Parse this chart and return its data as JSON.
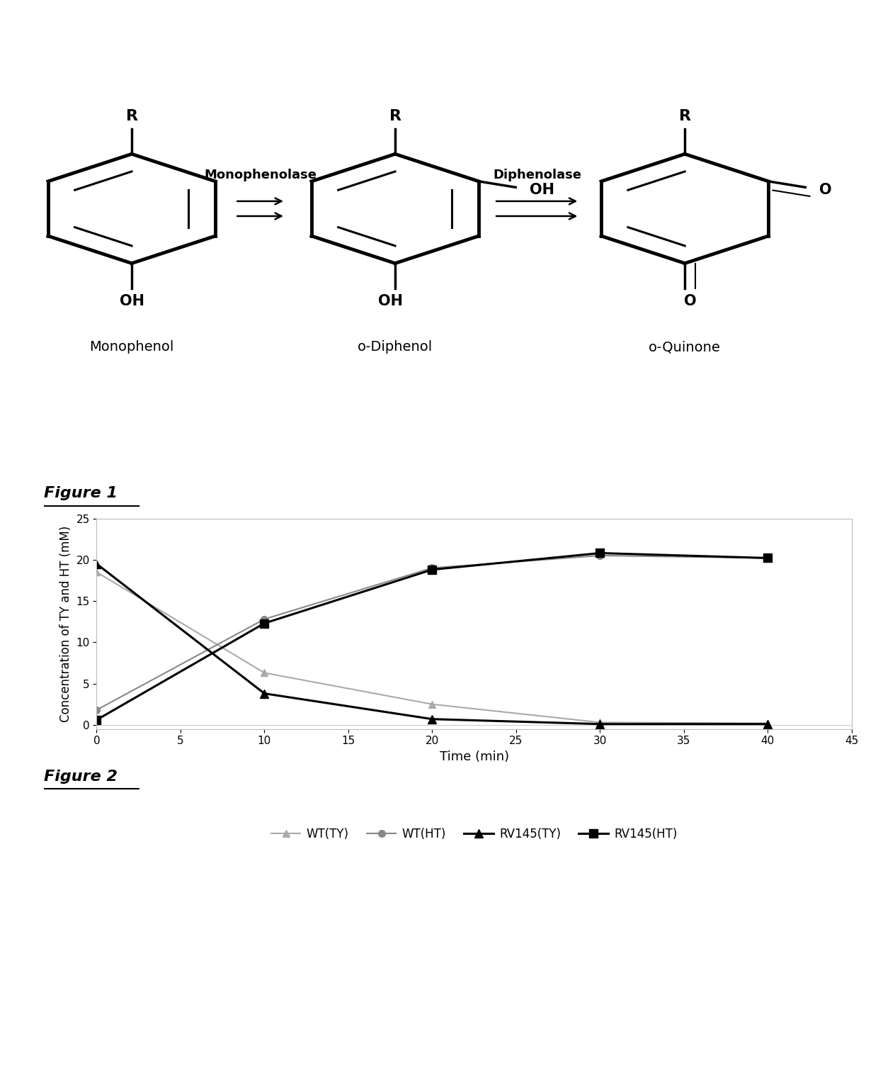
{
  "figure1_title": "Figure 1",
  "figure2_title": "Figure 2",
  "reaction_labels": [
    "Monophenol",
    "o-Diphenol",
    "o-Quinone"
  ],
  "enzyme_labels": [
    "Monophenolase",
    "Diphenolase"
  ],
  "time_points": [
    0,
    10,
    20,
    30,
    40
  ],
  "WT_TY": [
    18.5,
    6.3,
    2.5,
    0.3,
    0.2
  ],
  "WT_HT": [
    1.8,
    12.8,
    19.0,
    20.5,
    20.2
  ],
  "RV145_TY": [
    19.5,
    3.8,
    0.7,
    0.1,
    0.1
  ],
  "RV145_HT": [
    0.6,
    12.3,
    18.8,
    20.8,
    20.2
  ],
  "ylabel": "Concentration of TY and HT (mM)",
  "xlabel": "Time (min)",
  "xlim": [
    0,
    45
  ],
  "ylim": [
    -0.5,
    25
  ],
  "yticks": [
    0,
    5,
    10,
    15,
    20,
    25
  ],
  "xticks": [
    0,
    5,
    10,
    15,
    20,
    25,
    30,
    35,
    40,
    45
  ],
  "color_gray": "#aaaaaa",
  "color_dark_gray": "#888888",
  "color_black": "#000000",
  "legend_entries": [
    "WT(TY)",
    "WT(HT)",
    "RV145(TY)",
    "RV145(HT)"
  ]
}
